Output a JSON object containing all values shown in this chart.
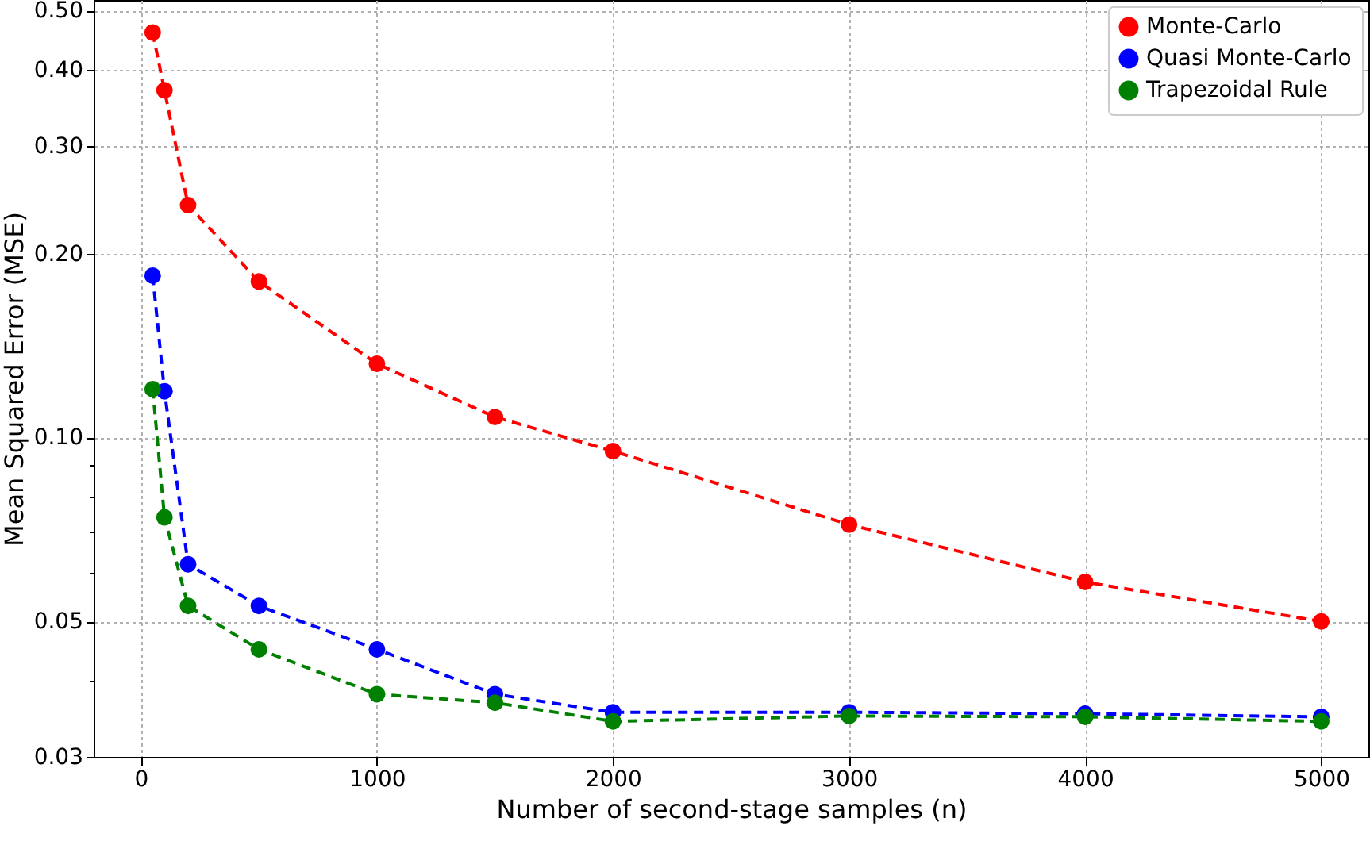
{
  "chart_data": {
    "type": "line",
    "xlabel": "Number of second-stage samples (n)",
    "ylabel": "Mean Squared Error (MSE)",
    "x": [
      50,
      100,
      200,
      500,
      1000,
      1500,
      2000,
      3000,
      4000,
      5000
    ],
    "series": [
      {
        "name": "Monte-Carlo",
        "color": "#ff0000",
        "values": [
          0.46,
          0.37,
          0.24,
          0.18,
          0.132,
          0.108,
          0.095,
          0.072,
          0.058,
          0.05
        ]
      },
      {
        "name": "Quasi Monte-Carlo",
        "color": "#0000ff",
        "values": [
          0.184,
          0.119,
          0.062,
          0.053,
          0.045,
          0.038,
          0.0355,
          0.0355,
          0.0353,
          0.0349
        ]
      },
      {
        "name": "Trapezoidal Rule",
        "color": "#008000",
        "values": [
          0.12,
          0.074,
          0.053,
          0.045,
          0.038,
          0.0368,
          0.0343,
          0.035,
          0.0349,
          0.0343
        ]
      }
    ],
    "log": "y",
    "xlim": [
      -200,
      5200
    ],
    "xticks": [
      0,
      1000,
      2000,
      3000,
      4000,
      5000
    ],
    "ylim": [
      0.03,
      0.52
    ],
    "yticks": [
      {
        "value": 0.03,
        "label": "0.03"
      },
      {
        "value": 0.04,
        "label": null
      },
      {
        "value": 0.05,
        "label": "0.05"
      },
      {
        "value": 0.06,
        "label": null
      },
      {
        "value": 0.07,
        "label": null
      },
      {
        "value": 0.08,
        "label": null
      },
      {
        "value": 0.09,
        "label": null
      },
      {
        "value": 0.1,
        "label": "0.10"
      },
      {
        "value": 0.2,
        "label": "0.20"
      },
      {
        "value": 0.3,
        "label": "0.30"
      },
      {
        "value": 0.4,
        "label": "0.40"
      },
      {
        "value": 0.5,
        "label": "0.50"
      }
    ],
    "grid": true,
    "legend": "top right",
    "marker": "circle",
    "line_style": "dashed"
  }
}
